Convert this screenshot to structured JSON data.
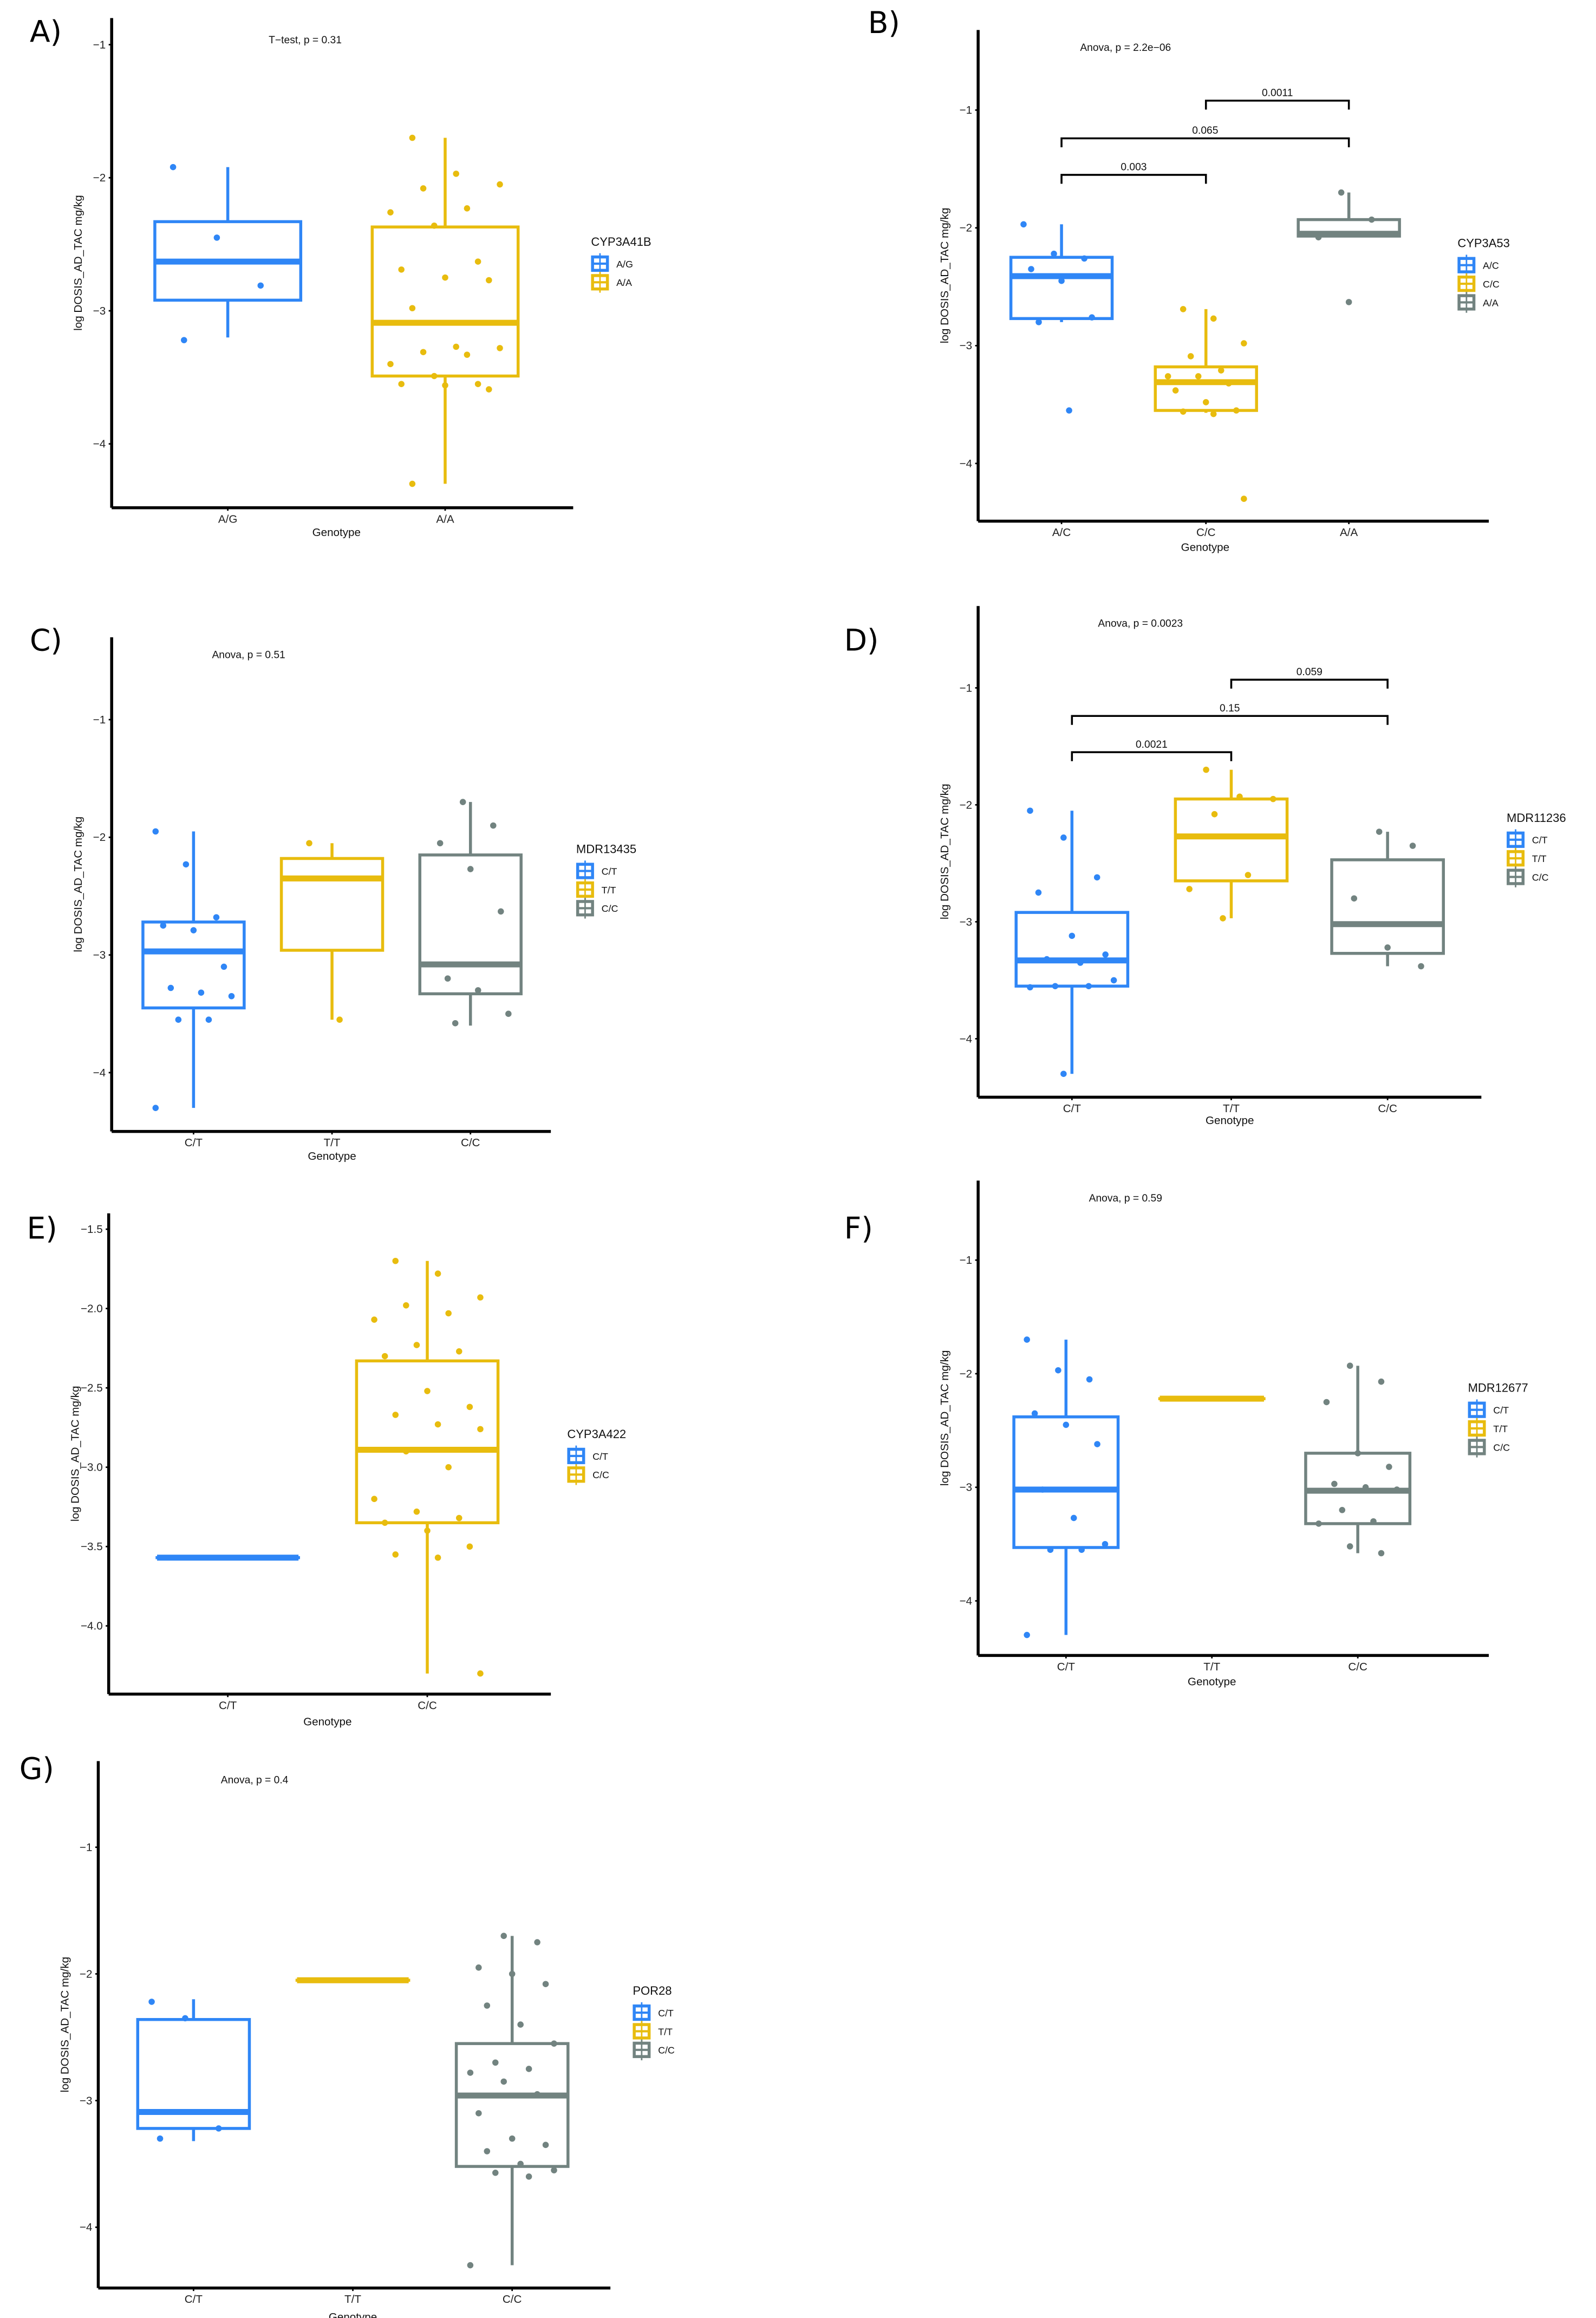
{
  "colors": {
    "blue": "#2f86f6",
    "gold": "#e8bc0e",
    "gray": "#728380"
  },
  "chart_data": [
    {
      "panel": "A)",
      "type": "box",
      "annotation": "T−test, p = 0.31",
      "xlabel": "Genotype",
      "ylabel": "log DOSIS_AD_TAC mg/kg",
      "ylim": [
        -4.48,
        -0.8
      ],
      "yticks": [
        -1,
        -2,
        -3,
        -4
      ],
      "ytick_labels": [
        "−1",
        "−2",
        "−3",
        "−4"
      ],
      "categories": [
        "A/G",
        "A/A"
      ],
      "legend_title": "CYP3A41B",
      "legend_placement": "right",
      "series": [
        {
          "name": "A/G",
          "color": "#2f86f6",
          "q1": -2.92,
          "median": -2.63,
          "q3": -2.33,
          "whisker_low": -3.2,
          "whisker_high": -1.92,
          "points": [
            -1.92,
            -2.45,
            -2.81,
            -3.22
          ]
        },
        {
          "name": "A/A",
          "color": "#e8bc0e",
          "q1": -3.49,
          "median": -3.09,
          "q3": -2.37,
          "whisker_low": -4.3,
          "whisker_high": -1.7,
          "points": [
            -1.7,
            -1.97,
            -2.05,
            -2.08,
            -2.23,
            -2.26,
            -2.36,
            -2.63,
            -2.69,
            -2.75,
            -2.77,
            -2.98,
            -3.27,
            -3.28,
            -3.31,
            -3.33,
            -3.4,
            -3.49,
            -3.55,
            -3.55,
            -3.56,
            -3.59,
            -4.3
          ]
        }
      ],
      "comparisons": []
    },
    {
      "panel": "B)",
      "type": "box",
      "annotation": "Anova, p = 2.2e−06",
      "xlabel": "Genotype",
      "ylabel": "log DOSIS_AD_TAC mg/kg",
      "ylim": [
        -4.49,
        -0.32
      ],
      "yticks": [
        -1,
        -2,
        -3,
        -4
      ],
      "ytick_labels": [
        "−1",
        "−2",
        "−3",
        "−4"
      ],
      "categories": [
        "A/C",
        "C/C",
        "A/A"
      ],
      "legend_title": "CYP3A53",
      "legend_placement": "right",
      "series": [
        {
          "name": "A/C",
          "color": "#2f86f6",
          "q1": -2.77,
          "median": -2.41,
          "q3": -2.25,
          "whisker_low": -2.8,
          "whisker_high": -1.97,
          "points": [
            -1.97,
            -2.22,
            -2.26,
            -2.35,
            -2.45,
            -2.76,
            -2.8,
            -3.55
          ]
        },
        {
          "name": "C/C",
          "color": "#e8bc0e",
          "q1": -3.55,
          "median": -3.31,
          "q3": -3.18,
          "whisker_low": -3.57,
          "whisker_high": -2.69,
          "points": [
            -2.69,
            -2.77,
            -2.98,
            -3.09,
            -3.21,
            -3.26,
            -3.26,
            -3.32,
            -3.38,
            -3.48,
            -3.55,
            -3.56,
            -3.58,
            -4.3
          ]
        },
        {
          "name": "A/A",
          "color": "#728380",
          "q1": -2.07,
          "median": -2.05,
          "q3": -1.93,
          "whisker_low": -2.07,
          "whisker_high": -1.7,
          "points": [
            -1.7,
            -1.93,
            -2.08,
            -2.63
          ]
        }
      ],
      "comparisons": [
        {
          "groups": [
            0,
            1
          ],
          "label": "0.003",
          "y": -1.55
        },
        {
          "groups": [
            0,
            2
          ],
          "label": "0.065",
          "y": -1.24
        },
        {
          "groups": [
            1,
            2
          ],
          "label": "0.0011",
          "y": -0.92
        }
      ]
    },
    {
      "panel": "C)",
      "type": "box",
      "annotation": "Anova, p = 0.51",
      "xlabel": "Genotype",
      "ylabel": "log DOSIS_AD_TAC mg/kg",
      "ylim": [
        -4.5,
        -0.3
      ],
      "yticks": [
        -1,
        -2,
        -3,
        -4
      ],
      "ytick_labels": [
        "−1",
        "−2",
        "−3",
        "−4"
      ],
      "categories": [
        "C/T",
        "T/T",
        "C/C"
      ],
      "legend_title": "MDR13435",
      "legend_placement": "right",
      "series": [
        {
          "name": "C/T",
          "color": "#2f86f6",
          "q1": -3.45,
          "median": -2.97,
          "q3": -2.72,
          "whisker_low": -4.3,
          "whisker_high": -1.95,
          "points": [
            -1.95,
            -2.23,
            -2.68,
            -2.75,
            -2.79,
            -3.1,
            -3.28,
            -3.32,
            -3.35,
            -3.55,
            -3.55,
            -4.3
          ]
        },
        {
          "name": "T/T",
          "color": "#e8bc0e",
          "q1": -2.96,
          "median": -2.35,
          "q3": -2.18,
          "whisker_low": -3.55,
          "whisker_high": -2.05,
          "points": [
            -2.05,
            -3.55
          ]
        },
        {
          "name": "C/C",
          "color": "#728380",
          "q1": -3.33,
          "median": -3.08,
          "q3": -2.15,
          "whisker_low": -3.6,
          "whisker_high": -1.7,
          "points": [
            -1.7,
            -1.9,
            -2.05,
            -2.27,
            -2.63,
            -3.2,
            -3.3,
            -3.5,
            -3.58
          ]
        }
      ],
      "comparisons": []
    },
    {
      "panel": "D)",
      "type": "box",
      "annotation": "Anova, p = 0.0023",
      "xlabel": "Genotype",
      "ylabel": "log DOSIS_AD_TAC mg/kg",
      "ylim": [
        -4.5,
        -0.3
      ],
      "yticks": [
        -1,
        -2,
        -3,
        -4
      ],
      "ytick_labels": [
        "−1",
        "−2",
        "−3",
        "−4"
      ],
      "categories": [
        "C/T",
        "T/T",
        "C/C"
      ],
      "legend_title": "MDR11236",
      "legend_placement": "right",
      "series": [
        {
          "name": "C/T",
          "color": "#2f86f6",
          "q1": -3.55,
          "median": -3.33,
          "q3": -2.92,
          "whisker_low": -4.3,
          "whisker_high": -2.05,
          "points": [
            -2.05,
            -2.28,
            -2.62,
            -2.75,
            -3.12,
            -3.28,
            -3.32,
            -3.35,
            -3.5,
            -3.55,
            -3.55,
            -3.56,
            -4.3
          ]
        },
        {
          "name": "T/T",
          "color": "#e8bc0e",
          "q1": -2.65,
          "median": -2.27,
          "q3": -1.95,
          "whisker_low": -2.97,
          "whisker_high": -1.7,
          "points": [
            -1.7,
            -1.93,
            -1.95,
            -2.08,
            -2.6,
            -2.72,
            -2.97
          ]
        },
        {
          "name": "C/C",
          "color": "#728380",
          "q1": -3.27,
          "median": -3.02,
          "q3": -2.47,
          "whisker_low": -3.38,
          "whisker_high": -2.23,
          "points": [
            -2.23,
            -2.35,
            -2.8,
            -3.22,
            -3.38
          ]
        }
      ],
      "comparisons": [
        {
          "groups": [
            0,
            1
          ],
          "label": "0.0021",
          "y": -1.55
        },
        {
          "groups": [
            0,
            2
          ],
          "label": "0.15",
          "y": -1.24
        },
        {
          "groups": [
            1,
            2
          ],
          "label": "0.059",
          "y": -0.93
        }
      ]
    },
    {
      "panel": "E)",
      "type": "box",
      "annotation": "",
      "xlabel": "Genotype",
      "ylabel": "log DOSIS_AD_TAC mg/kg",
      "ylim": [
        -4.43,
        -1.4
      ],
      "yticks": [
        -1.5,
        -2.0,
        -2.5,
        -3.0,
        -3.5,
        -4.0
      ],
      "ytick_labels": [
        "−1.5",
        "−2.0",
        "−2.5",
        "−3.0",
        "−3.5",
        "−4.0"
      ],
      "categories": [
        "C/T",
        "C/C"
      ],
      "legend_title": "CYP3A422",
      "legend_placement": "right",
      "series": [
        {
          "name": "C/T",
          "color": "#2f86f6",
          "q1": -3.57,
          "median": -3.57,
          "q3": -3.57,
          "whisker_low": -3.57,
          "whisker_high": -3.57,
          "points": []
        },
        {
          "name": "C/C",
          "color": "#e8bc0e",
          "q1": -3.35,
          "median": -2.89,
          "q3": -2.33,
          "whisker_low": -4.3,
          "whisker_high": -1.7,
          "points": [
            -1.7,
            -1.78,
            -1.93,
            -1.98,
            -2.03,
            -2.07,
            -2.23,
            -2.27,
            -2.3,
            -2.52,
            -2.62,
            -2.67,
            -2.73,
            -2.76,
            -2.9,
            -3.0,
            -3.2,
            -3.28,
            -3.32,
            -3.35,
            -3.4,
            -3.5,
            -3.55,
            -3.57,
            -4.3
          ]
        }
      ],
      "comparisons": []
    },
    {
      "panel": "F)",
      "type": "box",
      "annotation": "Anova, p = 0.59",
      "xlabel": "Genotype",
      "ylabel": "log DOSIS_AD_TAC mg/kg",
      "ylim": [
        -4.48,
        -0.3
      ],
      "yticks": [
        -1,
        -2,
        -3,
        -4
      ],
      "ytick_labels": [
        "−1",
        "−2",
        "−3",
        "−4"
      ],
      "categories": [
        "C/T",
        "T/T",
        "C/C"
      ],
      "legend_title": "MDR12677",
      "legend_placement": "right",
      "series": [
        {
          "name": "C/T",
          "color": "#2f86f6",
          "q1": -3.53,
          "median": -3.02,
          "q3": -2.38,
          "whisker_low": -4.3,
          "whisker_high": -1.7,
          "points": [
            -1.7,
            -1.97,
            -2.05,
            -2.35,
            -2.45,
            -2.62,
            -3.02,
            -3.27,
            -3.5,
            -3.55,
            -3.55,
            -4.3
          ]
        },
        {
          "name": "T/T",
          "color": "#e8bc0e",
          "q1": -2.22,
          "median": -2.22,
          "q3": -2.22,
          "whisker_low": -2.22,
          "whisker_high": -2.22,
          "points": []
        },
        {
          "name": "C/C",
          "color": "#728380",
          "q1": -3.32,
          "median": -3.03,
          "q3": -2.7,
          "whisker_low": -3.58,
          "whisker_high": -1.93,
          "points": [
            -1.93,
            -2.07,
            -2.25,
            -2.7,
            -2.82,
            -2.97,
            -3.0,
            -3.02,
            -3.2,
            -3.3,
            -3.32,
            -3.52,
            -3.58
          ]
        }
      ],
      "comparisons": []
    },
    {
      "panel": "G)",
      "type": "box",
      "annotation": "Anova, p = 0.4",
      "xlabel": "Genotype",
      "ylabel": "log DOSIS_AD_TAC mg/kg",
      "ylim": [
        -4.48,
        -0.32
      ],
      "yticks": [
        -1,
        -2,
        -3,
        -4
      ],
      "ytick_labels": [
        "−1",
        "−2",
        "−3",
        "−4"
      ],
      "categories": [
        "C/T",
        "T/T",
        "C/C"
      ],
      "legend_title": "POR28",
      "legend_placement": "right",
      "series": [
        {
          "name": "C/T",
          "color": "#2f86f6",
          "q1": -3.22,
          "median": -3.09,
          "q3": -2.36,
          "whisker_low": -3.32,
          "whisker_high": -2.2,
          "points": [
            -2.22,
            -2.35,
            -3.22,
            -3.3
          ]
        },
        {
          "name": "T/T",
          "color": "#e8bc0e",
          "q1": -2.05,
          "median": -2.05,
          "q3": -2.05,
          "whisker_low": -2.05,
          "whisker_high": -2.05,
          "points": []
        },
        {
          "name": "C/C",
          "color": "#728380",
          "q1": -3.52,
          "median": -2.96,
          "q3": -2.55,
          "whisker_low": -4.3,
          "whisker_high": -1.7,
          "points": [
            -1.7,
            -1.75,
            -1.95,
            -2.0,
            -2.08,
            -2.25,
            -2.4,
            -2.55,
            -2.7,
            -2.75,
            -2.78,
            -2.85,
            -2.95,
            -3.1,
            -3.3,
            -3.35,
            -3.4,
            -3.5,
            -3.55,
            -3.57,
            -3.6,
            -4.3
          ]
        }
      ],
      "comparisons": []
    }
  ]
}
